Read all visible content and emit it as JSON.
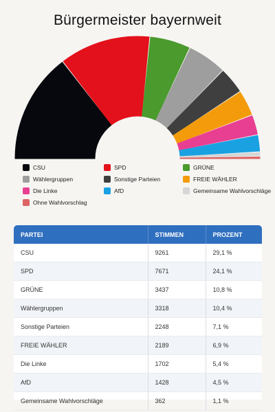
{
  "chart_data": {
    "type": "pie",
    "title": "Bürgermeister bayernweit",
    "series": [
      {
        "name": "CSU",
        "value": 9261,
        "percent": "29,1 %",
        "color": "#06080d"
      },
      {
        "name": "SPD",
        "value": 7671,
        "percent": "24,1 %",
        "color": "#e3111b"
      },
      {
        "name": "GRÜNE",
        "value": 3437,
        "percent": "10,8 %",
        "color": "#4a9a2d"
      },
      {
        "name": "Wählergruppen",
        "value": 3318,
        "percent": "10,4 %",
        "color": "#9e9e9e"
      },
      {
        "name": "Sonstige Parteien",
        "value": 2248,
        "percent": "7,1 %",
        "color": "#3f3f3f"
      },
      {
        "name": "FREIE WÄHLER",
        "value": 2189,
        "percent": "6,9 %",
        "color": "#f49b0b"
      },
      {
        "name": "Die Linke",
        "value": 1702,
        "percent": "5,4 %",
        "color": "#e93f92"
      },
      {
        "name": "AfD",
        "value": 1428,
        "percent": "4,5 %",
        "color": "#1aa1e2"
      },
      {
        "name": "Gemeinsame Wahlvorschläge",
        "value": 362,
        "percent": "1,1 %",
        "color": "#d6d6d6"
      },
      {
        "name": "Ohne Wahlvorschlag",
        "value": 200,
        "percent": "",
        "color": "#dc6464"
      }
    ],
    "legend_order": [
      "CSU",
      "SPD",
      "GRÜNE",
      "Wählergruppen",
      "Sonstige Parteien",
      "FREIE WÄHLER",
      "Die Linke",
      "AfD",
      "Gemeinsame Wahlvorschläge",
      "Ohne Wahlvorschlag"
    ]
  },
  "table": {
    "headers": [
      "PARTEI",
      "STIMMEN",
      "PROZENT"
    ],
    "rows": [
      [
        "CSU",
        "9261",
        "29,1 %"
      ],
      [
        "SPD",
        "7671",
        "24,1 %"
      ],
      [
        "GRÜNE",
        "3437",
        "10,8 %"
      ],
      [
        "Wählergruppen",
        "3318",
        "10,4 %"
      ],
      [
        "Sonstige Parteien",
        "2248",
        "7,1 %"
      ],
      [
        "FREIE WÄHLER",
        "2189",
        "6,9 %"
      ],
      [
        "Die Linke",
        "1702",
        "5,4 %"
      ],
      [
        "AfD",
        "1428",
        "4,5 %"
      ],
      [
        "Gemeinsame Wahlvorschläge",
        "362",
        "1,1 %"
      ]
    ]
  }
}
